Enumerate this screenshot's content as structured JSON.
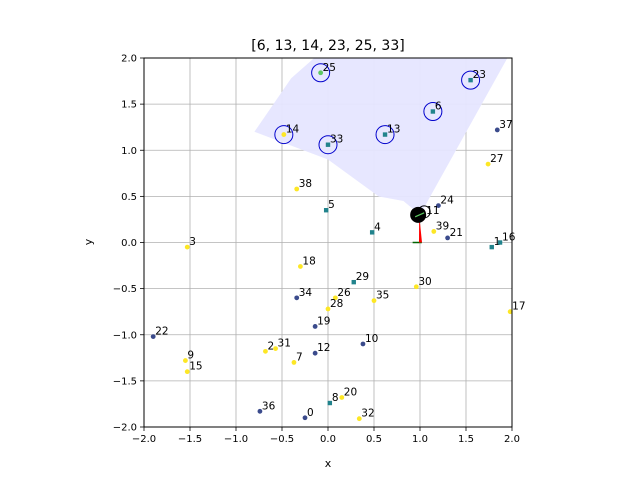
{
  "chart_data": {
    "type": "scatter",
    "title": "[6, 13, 14, 23, 25, 33]",
    "xlabel": "x",
    "ylabel": "y",
    "xlim": [
      -2.0,
      2.0
    ],
    "ylim": [
      -2.0,
      2.0
    ],
    "grid": true,
    "xticks": [
      "−2.0",
      "−1.5",
      "−1.0",
      "−0.5",
      "0.0",
      "0.5",
      "1.0",
      "1.5",
      "2.0"
    ],
    "yticks": [
      "−2.0",
      "−1.5",
      "−1.0",
      "−0.5",
      "0.0",
      "0.5",
      "1.0",
      "1.5",
      "2.0"
    ],
    "xtick_values": [
      -2.0,
      -1.5,
      -1.0,
      -0.5,
      0.0,
      0.5,
      1.0,
      1.5,
      2.0
    ],
    "ytick_values": [
      -2.0,
      -1.5,
      -1.0,
      -0.5,
      0.0,
      0.5,
      1.0,
      1.5,
      2.0
    ],
    "colors": {
      "navy": "#3b4b8c",
      "teal": "#21838c",
      "yellow": "#fde725",
      "green": "#5ec962",
      "highlight_ring": "#0000cc",
      "fov_fill": "#e6e6ff",
      "robot": "#000000",
      "heading": "#ff0000"
    },
    "fov_polygon": [
      [
        -0.8,
        1.2
      ],
      [
        -0.4,
        1.78
      ],
      [
        -0.15,
        2.0
      ],
      [
        1.95,
        2.0
      ],
      [
        1.0,
        0.3
      ],
      [
        0.82,
        0.45
      ],
      [
        0.55,
        0.5
      ],
      [
        0.0,
        0.9
      ]
    ],
    "robot": {
      "x": 0.98,
      "y": 0.3,
      "heading_end": [
        1.0,
        0.0
      ],
      "marker_label": "11"
    },
    "highlighted": [
      "6",
      "13",
      "14",
      "23",
      "25",
      "33"
    ],
    "points": [
      {
        "label": "0",
        "x": -0.25,
        "y": -1.9,
        "color": "navy"
      },
      {
        "label": "1",
        "x": 1.78,
        "y": -0.05,
        "color": "teal"
      },
      {
        "label": "2",
        "x": -0.68,
        "y": -1.18,
        "color": "yellow"
      },
      {
        "label": "3",
        "x": -1.53,
        "y": -0.05,
        "color": "yellow"
      },
      {
        "label": "4",
        "x": 0.48,
        "y": 0.11,
        "color": "teal"
      },
      {
        "label": "5",
        "x": -0.02,
        "y": 0.35,
        "color": "teal"
      },
      {
        "label": "6",
        "x": 1.14,
        "y": 1.42,
        "color": "teal"
      },
      {
        "label": "7",
        "x": -0.37,
        "y": -1.3,
        "color": "yellow"
      },
      {
        "label": "8",
        "x": 0.02,
        "y": -1.74,
        "color": "teal"
      },
      {
        "label": "9",
        "x": -1.55,
        "y": -1.28,
        "color": "yellow"
      },
      {
        "label": "10",
        "x": 0.38,
        "y": -1.1,
        "color": "navy"
      },
      {
        "label": "12",
        "x": -0.14,
        "y": -1.2,
        "color": "navy"
      },
      {
        "label": "13",
        "x": 0.62,
        "y": 1.17,
        "color": "teal"
      },
      {
        "label": "14",
        "x": -0.48,
        "y": 1.17,
        "color": "yellow"
      },
      {
        "label": "15",
        "x": -1.53,
        "y": -1.4,
        "color": "yellow"
      },
      {
        "label": "16",
        "x": 1.87,
        "y": 0.0,
        "color": "teal"
      },
      {
        "label": "17",
        "x": 1.98,
        "y": -0.75,
        "color": "yellow"
      },
      {
        "label": "18",
        "x": -0.3,
        "y": -0.26,
        "color": "yellow"
      },
      {
        "label": "19",
        "x": -0.14,
        "y": -0.91,
        "color": "navy"
      },
      {
        "label": "20",
        "x": 0.15,
        "y": -1.68,
        "color": "yellow"
      },
      {
        "label": "21",
        "x": 1.3,
        "y": 0.05,
        "color": "navy"
      },
      {
        "label": "22",
        "x": -1.9,
        "y": -1.02,
        "color": "navy"
      },
      {
        "label": "23",
        "x": 1.55,
        "y": 1.76,
        "color": "teal"
      },
      {
        "label": "24",
        "x": 1.2,
        "y": 0.4,
        "color": "navy"
      },
      {
        "label": "25",
        "x": -0.08,
        "y": 1.84,
        "color": "green"
      },
      {
        "label": "26",
        "x": 0.08,
        "y": -0.6,
        "color": "yellow"
      },
      {
        "label": "27",
        "x": 1.74,
        "y": 0.85,
        "color": "yellow"
      },
      {
        "label": "28",
        "x": 0.0,
        "y": -0.72,
        "color": "yellow"
      },
      {
        "label": "29",
        "x": 0.28,
        "y": -0.43,
        "color": "teal"
      },
      {
        "label": "30",
        "x": 0.96,
        "y": -0.48,
        "color": "yellow"
      },
      {
        "label": "31",
        "x": -0.57,
        "y": -1.15,
        "color": "yellow"
      },
      {
        "label": "32",
        "x": 0.34,
        "y": -1.91,
        "color": "yellow"
      },
      {
        "label": "33",
        "x": 0.0,
        "y": 1.06,
        "color": "teal"
      },
      {
        "label": "34",
        "x": -0.34,
        "y": -0.6,
        "color": "navy"
      },
      {
        "label": "35",
        "x": 0.5,
        "y": -0.63,
        "color": "yellow"
      },
      {
        "label": "36",
        "x": -0.74,
        "y": -1.83,
        "color": "navy"
      },
      {
        "label": "37",
        "x": 1.84,
        "y": 1.22,
        "color": "navy"
      },
      {
        "label": "38",
        "x": -0.34,
        "y": 0.58,
        "color": "yellow"
      },
      {
        "label": "39",
        "x": 1.15,
        "y": 0.12,
        "color": "yellow"
      }
    ]
  }
}
